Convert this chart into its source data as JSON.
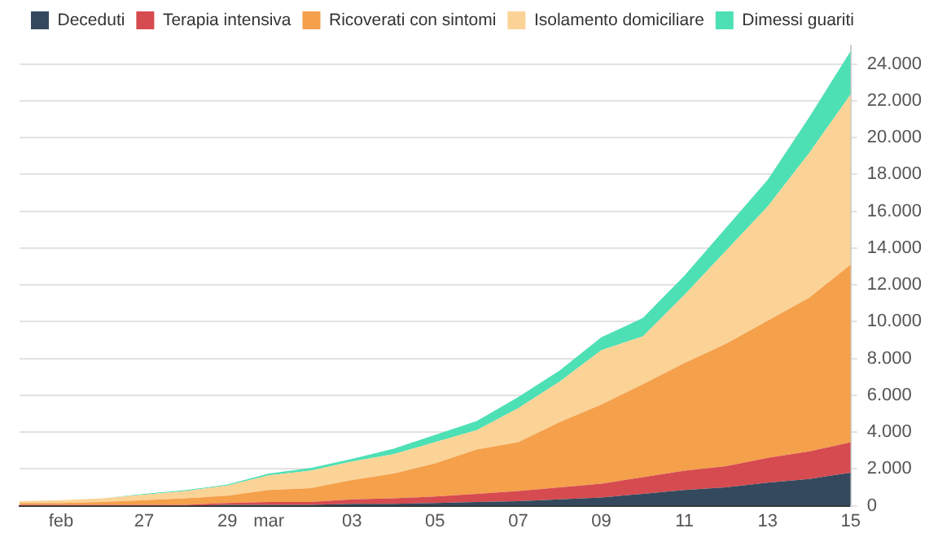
{
  "chart_data": {
    "type": "area",
    "stacked": true,
    "x": [
      "--02-24",
      "--02-25",
      "--02-26",
      "--02-27",
      "--02-28",
      "--02-29",
      "--03-01",
      "--03-02",
      "--03-03",
      "--03-04",
      "--03-05",
      "--03-06",
      "--03-07",
      "--03-08",
      "--03-09",
      "--03-10",
      "--03-11",
      "--03-12",
      "--03-13",
      "--03-14",
      "--03-15"
    ],
    "series": [
      {
        "name": "Deceduti",
        "color": "#34495e",
        "values": [
          0,
          0,
          0,
          0,
          0,
          50,
          50,
          50,
          100,
          100,
          150,
          200,
          250,
          350,
          450,
          650,
          850,
          1000,
          1250,
          1450,
          1800
        ]
      },
      {
        "name": "Terapia intensiva",
        "color": "#d64b4f",
        "values": [
          50,
          50,
          50,
          50,
          50,
          100,
          150,
          150,
          250,
          300,
          350,
          450,
          550,
          650,
          750,
          900,
          1050,
          1150,
          1350,
          1500,
          1650
        ]
      },
      {
        "name": "Ricoverati con sintomi",
        "color": "#f5a04a",
        "values": [
          100,
          100,
          150,
          250,
          350,
          400,
          650,
          750,
          1050,
          1350,
          1800,
          2400,
          2650,
          3550,
          4300,
          5050,
          5850,
          6650,
          7450,
          8350,
          9650
        ]
      },
      {
        "name": "Isolamento domiciliare",
        "color": "#fbd397",
        "values": [
          100,
          150,
          200,
          300,
          400,
          550,
          800,
          950,
          1000,
          1050,
          1150,
          1050,
          1850,
          2200,
          2950,
          2600,
          3700,
          5050,
          6200,
          7850,
          9250
        ]
      },
      {
        "name": "Dimessi guariti",
        "color": "#4ee0b5",
        "values": [
          0,
          0,
          0,
          50,
          50,
          50,
          100,
          150,
          150,
          300,
          400,
          500,
          600,
          600,
          700,
          1000,
          1050,
          1250,
          1450,
          1950,
          2350
        ]
      }
    ],
    "xlim": [
      "--02-24",
      "--03-15"
    ],
    "xticks": [
      {
        "value": "--02-25",
        "label": "feb"
      },
      {
        "value": "--02-27",
        "label": "27"
      },
      {
        "value": "--02-29",
        "label": "29"
      },
      {
        "value": "--03-01",
        "label": "mar"
      },
      {
        "value": "--03-03",
        "label": "03"
      },
      {
        "value": "--03-05",
        "label": "05"
      },
      {
        "value": "--03-07",
        "label": "07"
      },
      {
        "value": "--03-09",
        "label": "09"
      },
      {
        "value": "--03-11",
        "label": "11"
      },
      {
        "value": "--03-13",
        "label": "13"
      },
      {
        "value": "--03-15",
        "label": "15"
      }
    ],
    "ylim": [
      0,
      25000
    ],
    "yticks": [
      0,
      {
        "value": 2000,
        "label": "2.000"
      },
      {
        "value": 4000,
        "label": "4.000"
      },
      {
        "value": 6000,
        "label": "6.000"
      },
      {
        "value": 8000,
        "label": "8.000"
      },
      {
        "value": 10000,
        "label": "10.000"
      },
      {
        "value": 12000,
        "label": "12.000"
      },
      {
        "value": 14000,
        "label": "14.000"
      },
      {
        "value": 16000,
        "label": "16.000"
      },
      {
        "value": 18000,
        "label": "18.000"
      },
      {
        "value": 20000,
        "label": "20.000"
      },
      {
        "value": 22000,
        "label": "22.000"
      },
      {
        "value": 24000,
        "label": "24.000"
      }
    ],
    "grid": "y",
    "legend": "top left",
    "marker": "none"
  }
}
